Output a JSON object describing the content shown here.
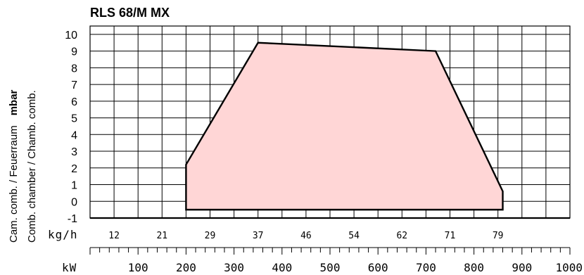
{
  "chart_data": {
    "type": "area",
    "title": "RLS 68/M MX",
    "ylabel_line1": "Cam. comb. / Feuerraum",
    "ylabel_unit": "mbar",
    "ylabel_line2": "Comb. chamber / Chamb. comb.",
    "ylim": [
      -1,
      10.5
    ],
    "yticks": [
      10,
      9,
      8,
      7,
      6,
      5,
      4,
      3,
      2,
      1,
      0,
      -1
    ],
    "xlim": [
      0,
      1000
    ],
    "x_axis_name": "kW",
    "xticks": [
      100,
      200,
      300,
      400,
      500,
      600,
      700,
      800,
      900,
      1000
    ],
    "secondary_axis_name": "kg/h",
    "secondary_ticks": [
      12,
      21,
      29,
      37,
      46,
      54,
      62,
      71,
      79
    ],
    "grid": true,
    "working_field": {
      "x": [
        200,
        200,
        350,
        720,
        860,
        860
      ],
      "y": [
        -0.5,
        2.2,
        9.5,
        9.0,
        0.6,
        -0.5
      ]
    }
  }
}
